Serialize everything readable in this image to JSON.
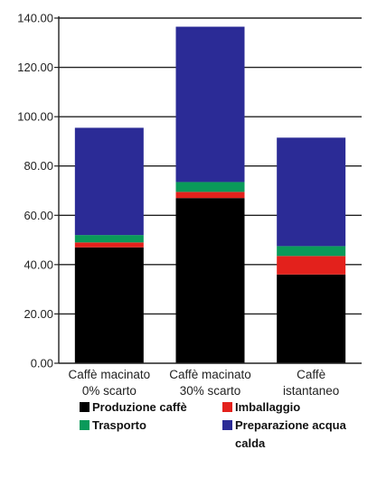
{
  "chart_data": {
    "type": "bar",
    "stacked": true,
    "categories": [
      [
        "Caffè macinato",
        "0% scarto"
      ],
      [
        "Caffè macinato",
        "30% scarto"
      ],
      [
        "Caffè",
        "istantaneo"
      ]
    ],
    "series": [
      {
        "name": "Produzione caffè",
        "color": "#000000",
        "values": [
          47,
          67,
          36
        ]
      },
      {
        "name": "Imballaggio",
        "color": "#e3211c",
        "values": [
          2,
          2.5,
          7.5
        ]
      },
      {
        "name": "Trasporto",
        "color": "#0a9a5a",
        "values": [
          3,
          4,
          4
        ]
      },
      {
        "name": "Preparazione acqua calda",
        "color": "#2b2b96",
        "values": [
          43.5,
          63,
          44
        ]
      }
    ],
    "legend_order": [
      0,
      1,
      2,
      3
    ],
    "legend_lines": [
      [
        "Produzione caffè"
      ],
      [
        "Imballaggio"
      ],
      [
        "Trasporto"
      ],
      [
        "Preparazione acqua",
        "calda"
      ]
    ],
    "yticks": [
      "0.00",
      "20.00",
      "40.00",
      "60.00",
      "80.00",
      "100.00",
      "120.00",
      "140.00"
    ],
    "ylim": [
      0,
      140
    ],
    "grid": true,
    "legend_placement": "bottom",
    "title": "",
    "xlabel": "",
    "ylabel": ""
  }
}
